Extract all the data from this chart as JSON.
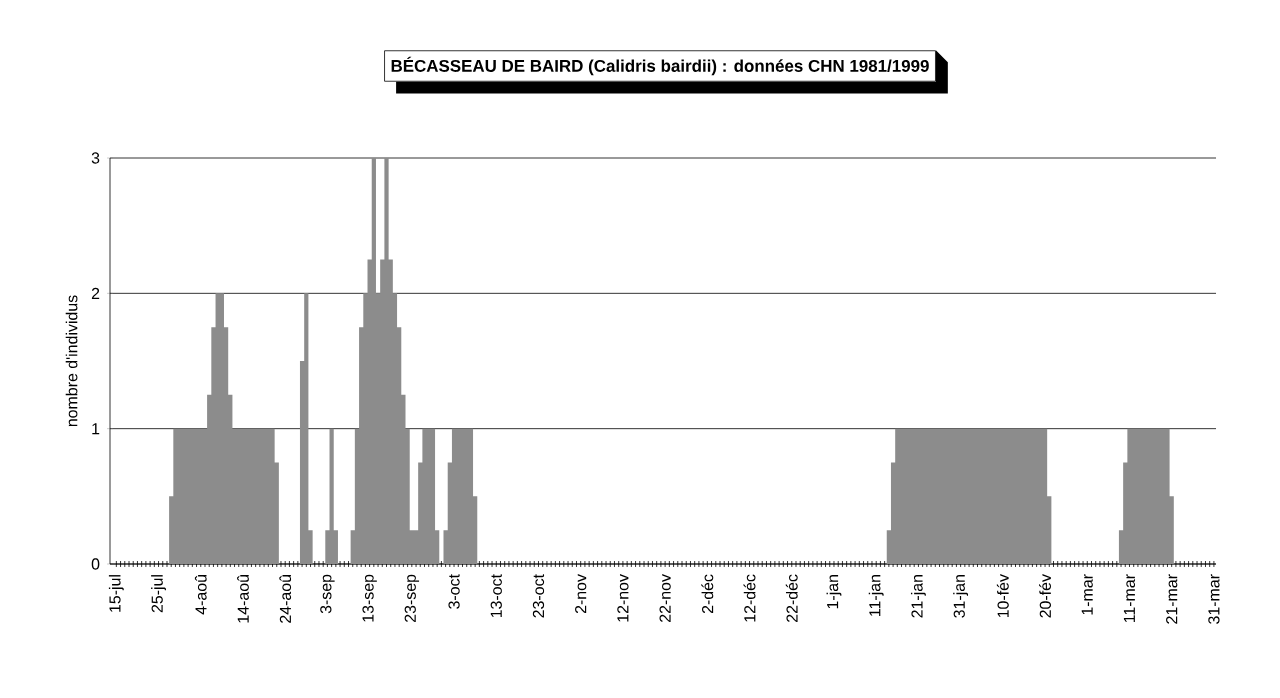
{
  "chart_data": {
    "type": "area",
    "title": "BÉCASSEAU DE BAIRD (Calidris bairdii) : données CHN 1981/1999",
    "ylabel": "nombre d'individus",
    "categories": [
      "15-jul",
      null,
      null,
      null,
      null,
      null,
      null,
      null,
      null,
      null,
      "25-jul",
      null,
      null,
      null,
      null,
      null,
      null,
      null,
      null,
      null,
      "4-aoû",
      null,
      null,
      null,
      null,
      null,
      null,
      null,
      null,
      null,
      "14-aoû",
      null,
      null,
      null,
      null,
      null,
      null,
      null,
      null,
      null,
      "24-aoû",
      null,
      null,
      null,
      null,
      null,
      null,
      null,
      null,
      null,
      "3-sep",
      null,
      null,
      null,
      null,
      null,
      null,
      null,
      null,
      null,
      "13-sep",
      null,
      null,
      null,
      null,
      null,
      null,
      null,
      null,
      null,
      "23-sep",
      null,
      null,
      null,
      null,
      null,
      null,
      null,
      null,
      null,
      "3-oct",
      null,
      null,
      null,
      null,
      null,
      null,
      null,
      null,
      null,
      "13-oct",
      null,
      null,
      null,
      null,
      null,
      null,
      null,
      null,
      null,
      "23-oct",
      null,
      null,
      null,
      null,
      null,
      null,
      null,
      null,
      null,
      "2-nov",
      null,
      null,
      null,
      null,
      null,
      null,
      null,
      null,
      null,
      "12-nov",
      null,
      null,
      null,
      null,
      null,
      null,
      null,
      null,
      null,
      "22-nov",
      null,
      null,
      null,
      null,
      null,
      null,
      null,
      null,
      null,
      "2-déc",
      null,
      null,
      null,
      null,
      null,
      null,
      null,
      null,
      null,
      "12-déc",
      null,
      null,
      null,
      null,
      null,
      null,
      null,
      null,
      null,
      "22-déc",
      null,
      null,
      null,
      null,
      null,
      null,
      null,
      null,
      null,
      "1-jan",
      null,
      null,
      null,
      null,
      null,
      null,
      null,
      null,
      null,
      "11-jan",
      null,
      null,
      null,
      null,
      null,
      null,
      null,
      null,
      null,
      "21-jan",
      null,
      null,
      null,
      null,
      null,
      null,
      null,
      null,
      null,
      "31-jan",
      null,
      null,
      null,
      null,
      null,
      null,
      null,
      null,
      null,
      "10-fév",
      null,
      null,
      null,
      null,
      null,
      null,
      null,
      null,
      null,
      "20-fév",
      null,
      null,
      null,
      null,
      null,
      null,
      null,
      null,
      null,
      "1-mar",
      null,
      null,
      null,
      null,
      null,
      null,
      null,
      null,
      null,
      "11-mar",
      null,
      null,
      null,
      null,
      null,
      null,
      null,
      null,
      null,
      "21-mar",
      null,
      null,
      null,
      null,
      null,
      null,
      null,
      null,
      null,
      "31-mar"
    ],
    "values": [
      0,
      0,
      0,
      0,
      0,
      0,
      0,
      0,
      0,
      0,
      0,
      0,
      0,
      0.5,
      1,
      1,
      1,
      1,
      1,
      1,
      1,
      1,
      1.25,
      1.75,
      2,
      2,
      1.75,
      1.25,
      1,
      1,
      1,
      1,
      1,
      1,
      1,
      1,
      1,
      1,
      0.75,
      0,
      0,
      0,
      0,
      0,
      1.5,
      2,
      0.25,
      0,
      0,
      0,
      0.25,
      1,
      0.25,
      0,
      0,
      0,
      0.25,
      1,
      1.75,
      2,
      2.25,
      3,
      2,
      2.25,
      3,
      2.25,
      2,
      1.75,
      1.25,
      1,
      0.25,
      0.25,
      0.75,
      1,
      1,
      1,
      0.25,
      0,
      0.25,
      0.75,
      1,
      1,
      1,
      1,
      1,
      0.5,
      0,
      0,
      0,
      0,
      0,
      0,
      0,
      0,
      0,
      0,
      0,
      0,
      0,
      0,
      0,
      0,
      0,
      0,
      0,
      0,
      0,
      0,
      0,
      0,
      0,
      0,
      0,
      0,
      0,
      0,
      0,
      0,
      0,
      0,
      0,
      0,
      0,
      0,
      0,
      0,
      0,
      0,
      0,
      0,
      0,
      0,
      0,
      0,
      0,
      0,
      0,
      0,
      0,
      0,
      0,
      0,
      0,
      0,
      0,
      0,
      0,
      0,
      0,
      0,
      0,
      0,
      0,
      0,
      0,
      0,
      0,
      0,
      0,
      0,
      0,
      0,
      0,
      0,
      0,
      0,
      0,
      0,
      0,
      0,
      0,
      0,
      0,
      0,
      0,
      0,
      0,
      0,
      0,
      0,
      0,
      0,
      0,
      0.25,
      0.75,
      1,
      1,
      1,
      1,
      1,
      1,
      1,
      1,
      1,
      1,
      1,
      1,
      1,
      1,
      1,
      1,
      1,
      1,
      1,
      1,
      1,
      1,
      1,
      1,
      1,
      1,
      1,
      1,
      1,
      1,
      1,
      1,
      1,
      1,
      1,
      1,
      0.5,
      0,
      0,
      0,
      0,
      0,
      0,
      0,
      0,
      0,
      0,
      0,
      0,
      0,
      0,
      0,
      0,
      0.25,
      0.75,
      1,
      1,
      1,
      1,
      1,
      1,
      1,
      1,
      1,
      1,
      0.5,
      0,
      0,
      0,
      0,
      0,
      0,
      0,
      0,
      0,
      0
    ],
    "color": "#8c8c8c",
    "ylim": [
      0,
      3
    ],
    "yticks": [
      0,
      1,
      2,
      3
    ],
    "grid": "y"
  }
}
